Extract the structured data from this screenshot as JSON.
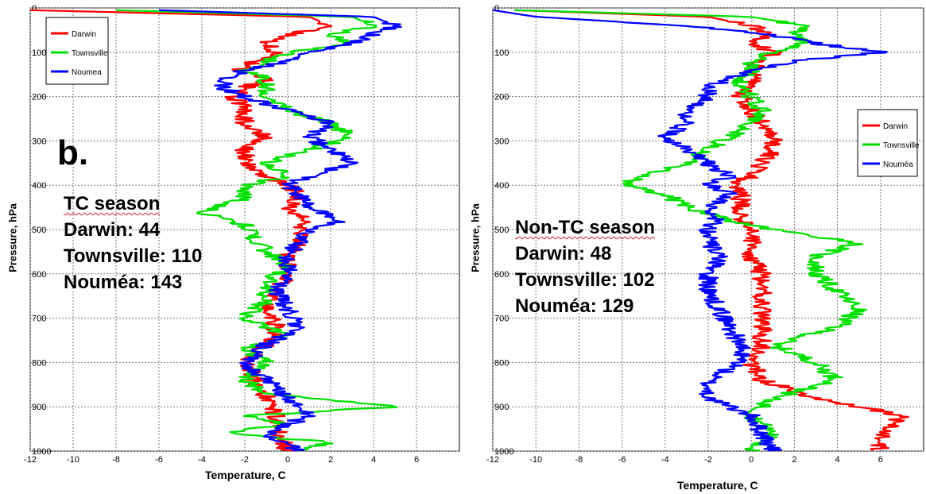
{
  "chart_data": [
    {
      "type": "line",
      "panel_letter": "b.",
      "xlabel": "Temperature, C",
      "ylabel": "Pressure, hPa",
      "xlim": [
        -12,
        8
      ],
      "ylim": [
        1000,
        0
      ],
      "x_ticks": [
        "-12",
        "-10",
        "-8",
        "-6",
        "-4",
        "-2",
        "0",
        "2",
        "4",
        "6"
      ],
      "y_ticks": [
        "0",
        "100",
        "200",
        "300",
        "400",
        "500",
        "600",
        "700",
        "800",
        "900",
        "1000"
      ],
      "grid": true,
      "legend_position": "top-left",
      "annotation": {
        "season": "TC season",
        "lines": [
          "Darwin: 44",
          "Townsville: 110",
          "Nouméa: 143"
        ]
      },
      "series": [
        {
          "name": "Darwin",
          "color": "#ff0000",
          "pressure": [
            5,
            20,
            40,
            60,
            80,
            100,
            120,
            140,
            160,
            180,
            200,
            230,
            260,
            290,
            320,
            350,
            380,
            400,
            420,
            450,
            480,
            500,
            530,
            560,
            600,
            640,
            680,
            720,
            760,
            800,
            840,
            880,
            920,
            960,
            1000
          ],
          "temperature": [
            -12,
            1,
            2,
            0,
            -1,
            -0.5,
            -1.5,
            -2.5,
            -1,
            -2,
            -2.5,
            -2,
            -2,
            -1,
            -2,
            -2,
            -1,
            0,
            0.5,
            0,
            1,
            0.5,
            0.5,
            0,
            0,
            -0.5,
            -1,
            -0.5,
            -1,
            -2,
            -1.5,
            -1,
            -0.5,
            -0.5,
            0
          ]
        },
        {
          "name": "Townsville",
          "color": "#00e000",
          "pressure": [
            5,
            20,
            40,
            60,
            80,
            100,
            120,
            140,
            160,
            180,
            200,
            230,
            260,
            290,
            320,
            350,
            380,
            400,
            430,
            460,
            490,
            520,
            550,
            580,
            620,
            660,
            700,
            740,
            770,
            800,
            840,
            870,
            900,
            920,
            940,
            960,
            980,
            1000
          ],
          "temperature": [
            -8,
            3,
            4,
            2,
            3,
            0,
            -1,
            -2,
            -1,
            -1,
            -1,
            0,
            2,
            3,
            1,
            -1,
            0,
            -2,
            -2,
            -4,
            -2,
            -1.5,
            -1,
            0,
            -1,
            -1,
            -2,
            0,
            -2,
            -1,
            -2,
            -1,
            5,
            -2,
            0,
            -3,
            2,
            0.5
          ]
        },
        {
          "name": "Noumea",
          "color": "#0000ff",
          "pressure": [
            5,
            20,
            40,
            60,
            80,
            100,
            120,
            140,
            160,
            180,
            200,
            230,
            260,
            290,
            320,
            350,
            380,
            400,
            420,
            450,
            480,
            500,
            530,
            560,
            600,
            640,
            680,
            720,
            760,
            800,
            840,
            880,
            920,
            960,
            1000
          ],
          "temperature": [
            -6,
            4,
            5,
            4,
            3,
            1,
            0,
            -2,
            -3,
            -3,
            -2,
            0,
            2,
            1,
            2,
            3,
            1,
            0,
            0.5,
            1,
            2.5,
            1,
            0.5,
            0,
            0,
            -0.5,
            0,
            0.5,
            -1,
            -2,
            -1,
            0,
            1,
            -1,
            0.5
          ]
        }
      ]
    },
    {
      "type": "line",
      "xlabel": "Temperature, C",
      "ylabel": "Pressure, hPa",
      "xlim": [
        -12,
        8
      ],
      "ylim": [
        1000,
        0
      ],
      "x_ticks": [
        "-12",
        "-10",
        "-8",
        "-6",
        "-4",
        "-2",
        "0",
        "2",
        "4",
        "6"
      ],
      "y_ticks": [
        "0",
        "100",
        "200",
        "300",
        "400",
        "500",
        "600",
        "700",
        "800",
        "900",
        "1000"
      ],
      "grid": true,
      "legend_position": "top-right",
      "annotation": {
        "season": "Non-TC season",
        "lines": [
          "Darwin: 48",
          "Townsville: 102",
          "Nouméa: 129"
        ]
      },
      "series": [
        {
          "name": "Darwin",
          "color": "#ff0000",
          "pressure": [
            5,
            20,
            40,
            60,
            80,
            100,
            120,
            140,
            160,
            180,
            200,
            230,
            260,
            290,
            320,
            350,
            380,
            400,
            420,
            450,
            480,
            500,
            530,
            560,
            600,
            640,
            680,
            720,
            760,
            800,
            840,
            880,
            900,
            920,
            960,
            1000
          ],
          "temperature": [
            -11,
            -2,
            0,
            1,
            0,
            1,
            0.5,
            0,
            0,
            0,
            -0.5,
            0,
            0.5,
            1,
            1,
            0.5,
            0,
            -1,
            -0.5,
            -0.5,
            -0.5,
            0,
            0,
            0,
            0.5,
            0.5,
            0.5,
            0.5,
            0.5,
            0,
            0.5,
            3,
            5,
            7,
            6,
            6
          ]
        },
        {
          "name": "Townsville",
          "color": "#00e000",
          "pressure": [
            5,
            20,
            40,
            60,
            80,
            100,
            120,
            140,
            160,
            180,
            200,
            230,
            260,
            290,
            320,
            350,
            380,
            400,
            420,
            450,
            480,
            500,
            530,
            560,
            600,
            640,
            680,
            720,
            760,
            800,
            840,
            880,
            920,
            960,
            1000
          ],
          "temperature": [
            -11,
            0,
            2.5,
            2,
            2.5,
            1,
            0,
            0,
            -0.5,
            -0.5,
            0,
            0.5,
            0,
            -1,
            -2,
            -3,
            -5,
            -6,
            -4,
            -3,
            -1,
            1,
            5,
            3,
            3,
            4,
            5,
            4,
            1,
            3,
            4,
            1,
            0,
            1,
            0
          ]
        },
        {
          "name": "Nouméa",
          "color": "#0000ff",
          "pressure": [
            5,
            20,
            40,
            60,
            80,
            100,
            120,
            140,
            160,
            180,
            200,
            230,
            260,
            290,
            320,
            350,
            380,
            400,
            420,
            450,
            480,
            500,
            530,
            560,
            600,
            640,
            680,
            720,
            760,
            800,
            840,
            880,
            920,
            960,
            1000
          ],
          "temperature": [
            -12,
            -10,
            -3,
            1,
            3,
            6,
            2,
            0,
            -1,
            -2,
            -2,
            -3,
            -3,
            -4,
            -3,
            -2,
            -1,
            -2,
            -1,
            -2,
            -1.5,
            -2,
            -2,
            -1.5,
            -2,
            -2,
            -1.5,
            -1,
            -0.5,
            -0.5,
            -2,
            -2,
            0,
            0.5,
            1
          ]
        }
      ]
    }
  ]
}
